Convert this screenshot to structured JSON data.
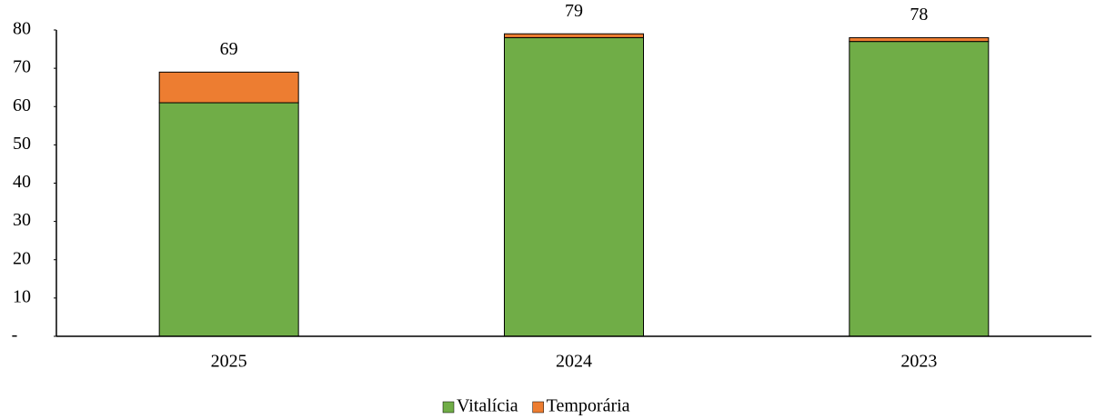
{
  "chart_data": {
    "type": "stacked_bar",
    "categories": [
      "2025",
      "2024",
      "2023"
    ],
    "series": [
      {
        "name": "Vitalícia",
        "color": "#70ad47",
        "values": [
          61,
          78,
          77
        ]
      },
      {
        "name": "Temporária",
        "color": "#ed7d31",
        "values": [
          8,
          1,
          1
        ]
      }
    ],
    "totals": [
      69,
      79,
      78
    ],
    "ylim": [
      0,
      80
    ],
    "yticks": [
      {
        "value": 0,
        "label": "-"
      },
      10,
      20,
      30,
      40,
      50,
      60,
      70,
      80
    ],
    "grid": false,
    "legend": "bottom"
  }
}
